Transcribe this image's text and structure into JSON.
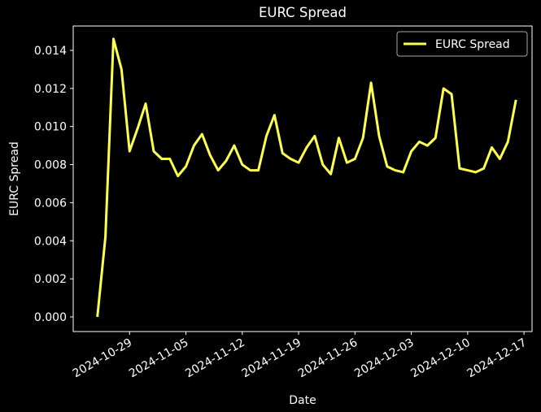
{
  "chart_data": {
    "type": "line",
    "title": "EURC Spread",
    "xlabel": "Date",
    "ylabel": "EURC Spread",
    "legend": "upper right",
    "grid": false,
    "x": [
      "2024-10-25",
      "2024-10-26",
      "2024-10-27",
      "2024-10-28",
      "2024-10-29",
      "2024-10-30",
      "2024-10-31",
      "2024-11-01",
      "2024-11-02",
      "2024-11-03",
      "2024-11-04",
      "2024-11-05",
      "2024-11-06",
      "2024-11-07",
      "2024-11-08",
      "2024-11-09",
      "2024-11-10",
      "2024-11-11",
      "2024-11-12",
      "2024-11-13",
      "2024-11-14",
      "2024-11-15",
      "2024-11-16",
      "2024-11-17",
      "2024-11-18",
      "2024-11-19",
      "2024-11-20",
      "2024-11-21",
      "2024-11-22",
      "2024-11-23",
      "2024-11-24",
      "2024-11-25",
      "2024-11-26",
      "2024-11-27",
      "2024-11-28",
      "2024-11-29",
      "2024-11-30",
      "2024-12-01",
      "2024-12-02",
      "2024-12-03",
      "2024-12-04",
      "2024-12-05",
      "2024-12-06",
      "2024-12-07",
      "2024-12-08",
      "2024-12-09",
      "2024-12-10",
      "2024-12-11",
      "2024-12-12",
      "2024-12-13",
      "2024-12-14",
      "2024-12-15",
      "2024-12-16"
    ],
    "series": [
      {
        "name": "EURC Spread",
        "color": "#ffff4d",
        "values": [
          0.0,
          0.0042,
          0.0146,
          0.013,
          0.0087,
          0.0099,
          0.0112,
          0.0087,
          0.0083,
          0.0083,
          0.0074,
          0.0079,
          0.009,
          0.0096,
          0.0085,
          0.0077,
          0.0082,
          0.009,
          0.008,
          0.0077,
          0.0077,
          0.0095,
          0.0106,
          0.0086,
          0.0083,
          0.0081,
          0.0089,
          0.0095,
          0.008,
          0.0075,
          0.0094,
          0.0081,
          0.0083,
          0.0094,
          0.0123,
          0.0095,
          0.0079,
          0.0077,
          0.0076,
          0.0087,
          0.0092,
          0.009,
          0.0094,
          0.012,
          0.0117,
          0.0078,
          0.0077,
          0.0076,
          0.0078,
          0.0089,
          0.0083,
          0.0092,
          0.0114
        ]
      }
    ],
    "xlim": [
      "2024-10-22",
      "2024-12-18"
    ],
    "xticks": [
      "2024-10-29",
      "2024-11-05",
      "2024-11-12",
      "2024-11-19",
      "2024-11-26",
      "2024-12-03",
      "2024-12-10",
      "2024-12-17"
    ],
    "ylim": [
      -0.00077,
      0.01528
    ],
    "yticks": [
      {
        "value": 0,
        "label": "0.000"
      },
      {
        "value": 0.002,
        "label": "0.002"
      },
      {
        "value": 0.004,
        "label": "0.004"
      },
      {
        "value": 0.006,
        "label": "0.006"
      },
      {
        "value": 0.008,
        "label": "0.008"
      },
      {
        "value": 0.01,
        "label": "0.010"
      },
      {
        "value": 0.012,
        "label": "0.012"
      },
      {
        "value": 0.014,
        "label": "0.014"
      }
    ]
  }
}
